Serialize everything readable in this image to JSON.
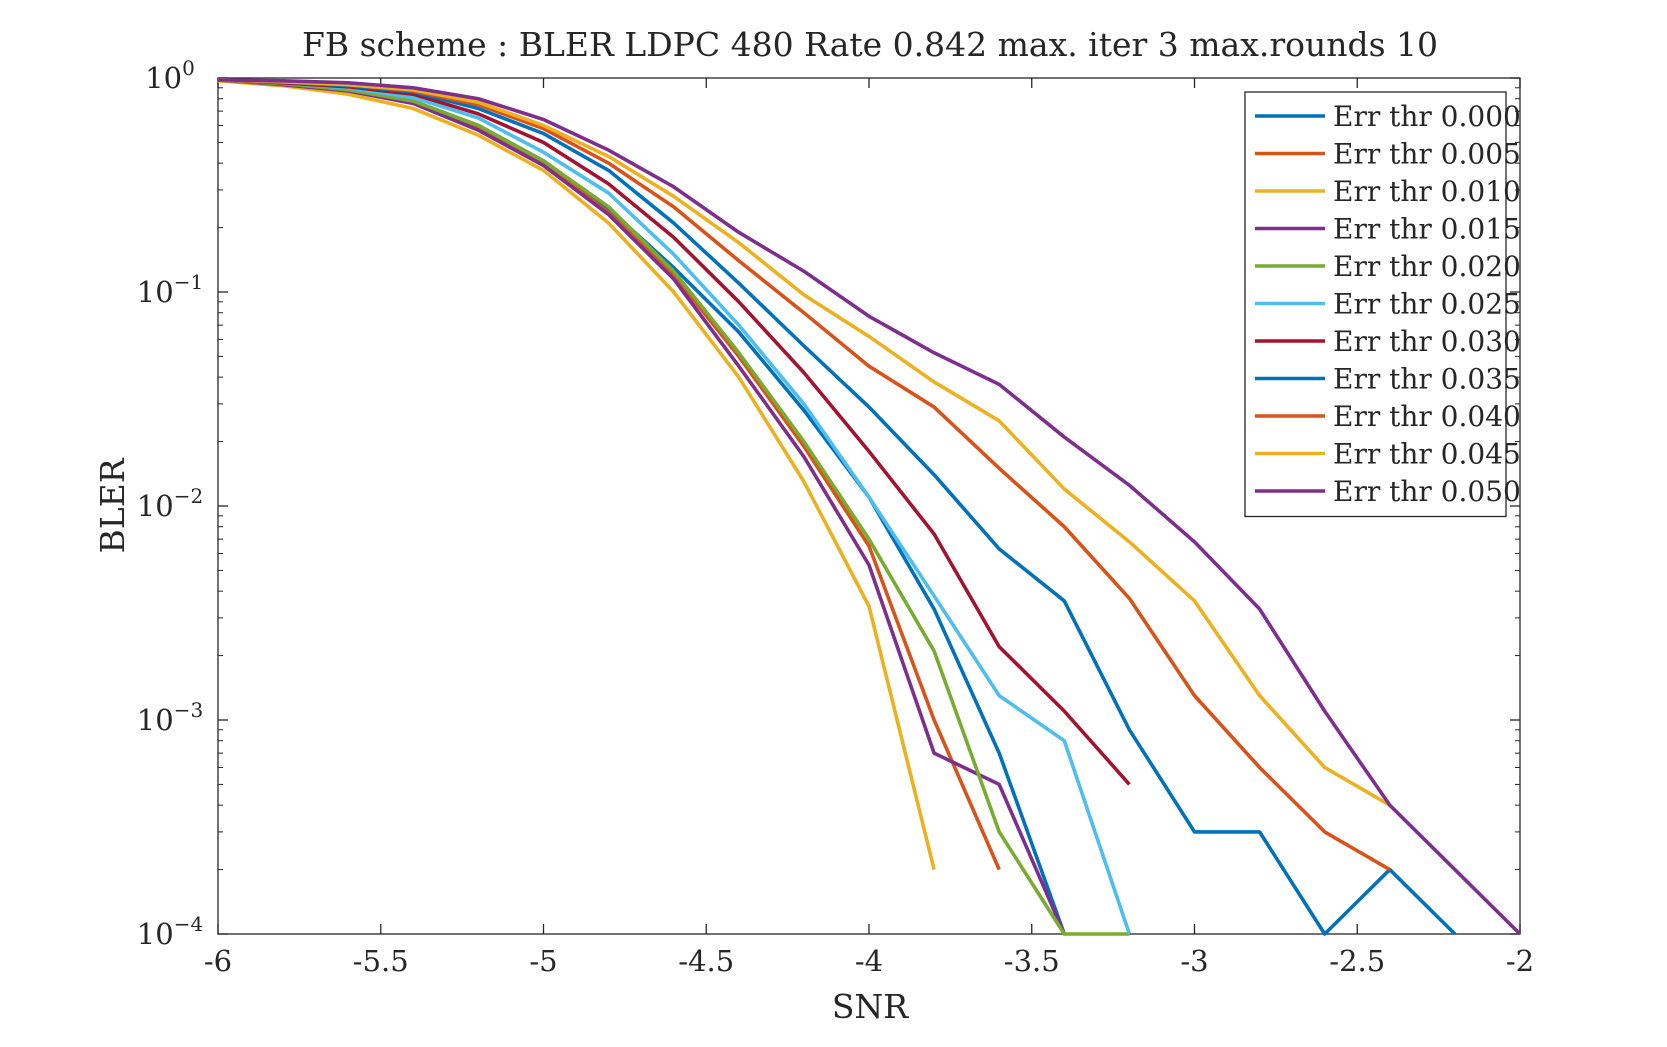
{
  "chart_data": {
    "type": "line",
    "title": "FB scheme : BLER LDPC 480 Rate 0.842 max. iter 3 max.rounds 10",
    "xlabel": "SNR",
    "ylabel": "BLER",
    "xlim": [
      -6,
      -2
    ],
    "ylim": [
      0.0001,
      1
    ],
    "yscale": "log",
    "x_ticks": [
      "-6",
      "-5.5",
      "-5",
      "-4.5",
      "-4",
      "-3.5",
      "-3",
      "-2.5",
      "-2"
    ],
    "y_ticks": [
      {
        "base": "10",
        "exp": "0"
      },
      {
        "base": "10",
        "exp": "−1"
      },
      {
        "base": "10",
        "exp": "−2"
      },
      {
        "base": "10",
        "exp": "−3"
      },
      {
        "base": "10",
        "exp": "−4"
      }
    ],
    "legend_position": "top-right",
    "grid": false,
    "series": [
      {
        "name": "Err thr 0.000",
        "color": "#0072BD",
        "x": [
          -6,
          -5.8,
          -5.6,
          -5.4,
          -5.2,
          -5,
          -4.8,
          -4.6,
          -4.4,
          -4.2,
          -4,
          -3.8,
          -3.6,
          -3.4
        ],
        "y": [
          0.98,
          0.94,
          0.88,
          0.78,
          0.6,
          0.41,
          0.245,
          0.13,
          0.065,
          0.028,
          0.011,
          0.0033,
          0.0007,
          0.0001
        ]
      },
      {
        "name": "Err thr 0.005",
        "color": "#D95319",
        "x": [
          -6,
          -5.8,
          -5.6,
          -5.4,
          -5.2,
          -5,
          -4.8,
          -4.6,
          -4.4,
          -4.2,
          -4,
          -3.8,
          -3.6
        ],
        "y": [
          0.98,
          0.93,
          0.87,
          0.77,
          0.58,
          0.4,
          0.235,
          0.12,
          0.05,
          0.019,
          0.0065,
          0.001,
          0.0002
        ]
      },
      {
        "name": "Err thr 0.010",
        "color": "#EDB120",
        "x": [
          -6,
          -5.8,
          -5.6,
          -5.4,
          -5.2,
          -5,
          -4.8,
          -4.6,
          -4.4,
          -4.2,
          -4,
          -3.8
        ],
        "y": [
          0.97,
          0.92,
          0.84,
          0.72,
          0.54,
          0.37,
          0.21,
          0.1,
          0.04,
          0.013,
          0.0034,
          0.0002
        ]
      },
      {
        "name": "Err thr 0.015",
        "color": "#7E2F8E",
        "x": [
          -6,
          -5.8,
          -5.6,
          -5.4,
          -5.2,
          -5,
          -4.8,
          -4.6,
          -4.4,
          -4.2,
          -4,
          -3.8,
          -3.6,
          -3.4
        ],
        "y": [
          0.98,
          0.93,
          0.87,
          0.76,
          0.57,
          0.39,
          0.23,
          0.115,
          0.045,
          0.017,
          0.0053,
          0.0007,
          0.0005,
          0.0001
        ]
      },
      {
        "name": "Err thr 0.020",
        "color": "#77AC30",
        "x": [
          -6,
          -5.8,
          -5.6,
          -5.4,
          -5.2,
          -5,
          -4.8,
          -4.6,
          -4.4,
          -4.2,
          -4,
          -3.8,
          -3.6,
          -3.4,
          -3.2
        ],
        "y": [
          0.98,
          0.94,
          0.88,
          0.78,
          0.6,
          0.41,
          0.25,
          0.125,
          0.052,
          0.02,
          0.007,
          0.0021,
          0.0003,
          0.0001,
          0.0001
        ]
      },
      {
        "name": "Err thr 0.025",
        "color": "#4DBEEE",
        "x": [
          -6,
          -5.8,
          -5.6,
          -5.4,
          -5.2,
          -5,
          -4.8,
          -4.6,
          -4.4,
          -4.2,
          -4,
          -3.8,
          -3.6,
          -3.4,
          -3.2
        ],
        "y": [
          0.98,
          0.95,
          0.9,
          0.81,
          0.65,
          0.45,
          0.29,
          0.15,
          0.07,
          0.03,
          0.011,
          0.0038,
          0.0013,
          0.0008,
          0.0001
        ]
      },
      {
        "name": "Err thr 0.030",
        "color": "#A2142F",
        "x": [
          -6,
          -5.8,
          -5.6,
          -5.4,
          -5.2,
          -5,
          -4.8,
          -4.6,
          -4.4,
          -4.2,
          -4,
          -3.8,
          -3.6,
          -3.4,
          -3.2
        ],
        "y": [
          0.98,
          0.95,
          0.91,
          0.84,
          0.68,
          0.5,
          0.32,
          0.18,
          0.09,
          0.042,
          0.018,
          0.0074,
          0.0022,
          0.0011,
          0.0005
        ]
      },
      {
        "name": "Err thr 0.035",
        "color": "#0072BD",
        "x": [
          -6,
          -5.8,
          -5.6,
          -5.4,
          -5.2,
          -5,
          -4.8,
          -4.6,
          -4.4,
          -4.2,
          -4,
          -3.8,
          -3.6,
          -3.4,
          -3.2,
          -3,
          -2.8,
          -2.6,
          -2.4,
          -2.2
        ],
        "y": [
          0.98,
          0.96,
          0.92,
          0.86,
          0.72,
          0.55,
          0.37,
          0.21,
          0.11,
          0.056,
          0.029,
          0.014,
          0.0063,
          0.0036,
          0.0009,
          0.0003,
          0.0003,
          0.0001,
          0.0002,
          0.0001
        ]
      },
      {
        "name": "Err thr 0.040",
        "color": "#D95319",
        "x": [
          -6,
          -5.8,
          -5.6,
          -5.4,
          -5.2,
          -5,
          -4.8,
          -4.6,
          -4.4,
          -4.2,
          -4,
          -3.8,
          -3.6,
          -3.4,
          -3.2,
          -3,
          -2.8,
          -2.6,
          -2.4
        ],
        "y": [
          0.98,
          0.96,
          0.93,
          0.87,
          0.75,
          0.58,
          0.4,
          0.25,
          0.14,
          0.08,
          0.045,
          0.029,
          0.015,
          0.008,
          0.0037,
          0.0013,
          0.0006,
          0.0003,
          0.0002
        ]
      },
      {
        "name": "Err thr 0.045",
        "color": "#EDB120",
        "x": [
          -6,
          -5.8,
          -5.6,
          -5.4,
          -5.2,
          -5,
          -4.8,
          -4.6,
          -4.4,
          -4.2,
          -4,
          -3.8,
          -3.6,
          -3.4,
          -3.2,
          -3,
          -2.8,
          -2.6,
          -2.4
        ],
        "y": [
          0.98,
          0.96,
          0.93,
          0.88,
          0.77,
          0.6,
          0.43,
          0.28,
          0.17,
          0.097,
          0.062,
          0.038,
          0.025,
          0.012,
          0.0068,
          0.0036,
          0.0013,
          0.0006,
          0.0004
        ]
      },
      {
        "name": "Err thr 0.050",
        "color": "#7E2F8E",
        "x": [
          -6,
          -5.8,
          -5.6,
          -5.4,
          -5.2,
          -5,
          -4.8,
          -4.6,
          -4.4,
          -4.2,
          -4,
          -3.8,
          -3.6,
          -3.4,
          -3.2,
          -3,
          -2.8,
          -2.6,
          -2.4,
          -2.2,
          -2
        ],
        "y": [
          0.98,
          0.97,
          0.95,
          0.9,
          0.8,
          0.64,
          0.46,
          0.31,
          0.19,
          0.125,
          0.077,
          0.052,
          0.037,
          0.021,
          0.0125,
          0.0068,
          0.0033,
          0.0011,
          0.0004,
          0.0002,
          0.0001
        ]
      }
    ]
  }
}
